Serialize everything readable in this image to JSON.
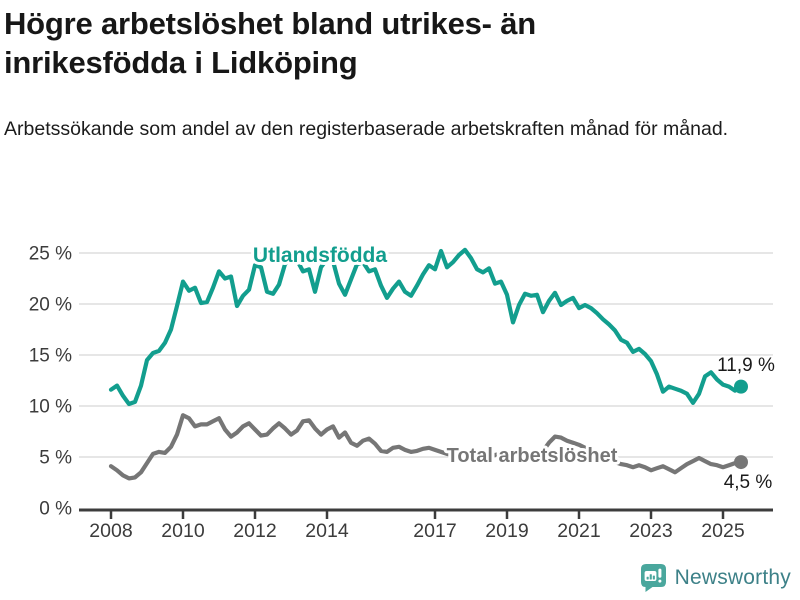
{
  "header": {
    "title": "Högre arbetslöshet bland utrikes- än inrikesfödda i Lidköping",
    "subtitle": "Arbetssökande som andel av den registerbaserade arbetskraften månad för månad."
  },
  "chart_data": {
    "type": "line",
    "unit": "%",
    "x_start": 2008.0,
    "x_step_years": 0.1666667,
    "x_end": 2025.5,
    "ylim": [
      0,
      25
    ],
    "grid": "horizontal",
    "y_ticks": [
      0,
      5,
      10,
      15,
      20,
      25
    ],
    "y_tick_labels": [
      "0 %",
      "5 %",
      "10 %",
      "15 %",
      "20 %",
      "25 %"
    ],
    "x_ticks": [
      2008,
      2010,
      2012,
      2014,
      2017,
      2019,
      2021,
      2023,
      2025
    ],
    "x_tick_labels": [
      "2008",
      "2010",
      "2012",
      "2014",
      "2017",
      "2019",
      "2021",
      "2023",
      "2025"
    ],
    "series": [
      {
        "name": "Utlandsfödda",
        "color": "#129e8e",
        "end_label": "11,9 %",
        "end_value": 11.9,
        "values": [
          11.6,
          12.0,
          11.0,
          10.2,
          10.4,
          12.0,
          14.5,
          15.2,
          15.4,
          16.2,
          17.5,
          19.8,
          22.2,
          21.3,
          21.6,
          20.1,
          20.2,
          21.6,
          23.2,
          22.5,
          22.7,
          19.8,
          20.8,
          21.4,
          23.8,
          23.6,
          21.2,
          21.0,
          21.9,
          23.9,
          24.4,
          24.3,
          23.2,
          23.4,
          21.2,
          23.6,
          24.4,
          24.2,
          22.0,
          20.9,
          22.4,
          23.9,
          24.1,
          23.2,
          23.4,
          21.8,
          20.6,
          21.5,
          22.2,
          21.2,
          20.8,
          21.8,
          22.9,
          23.8,
          23.4,
          25.2,
          23.6,
          24.1,
          24.8,
          25.3,
          24.5,
          23.4,
          23.1,
          23.5,
          22.0,
          22.2,
          20.9,
          18.2,
          19.9,
          21.0,
          20.8,
          20.9,
          19.2,
          20.3,
          21.1,
          19.9,
          20.3,
          20.6,
          19.6,
          19.9,
          19.6,
          19.1,
          18.5,
          18.0,
          17.4,
          16.5,
          16.2,
          15.3,
          15.6,
          15.1,
          14.4,
          13.1,
          11.4,
          11.9,
          11.7,
          11.5,
          11.2,
          10.3,
          11.2,
          12.9,
          13.3,
          12.6,
          12.1,
          11.9,
          11.5,
          11.9
        ]
      },
      {
        "name": "Total arbetslöshet",
        "color": "#767676",
        "end_label": "4,5 %",
        "end_value": 4.5,
        "values": [
          4.1,
          3.7,
          3.2,
          2.9,
          3.0,
          3.5,
          4.4,
          5.3,
          5.5,
          5.4,
          6.0,
          7.2,
          9.1,
          8.8,
          8.0,
          8.2,
          8.2,
          8.5,
          8.8,
          7.7,
          7.0,
          7.4,
          8.0,
          8.3,
          7.7,
          7.1,
          7.2,
          7.8,
          8.3,
          7.8,
          7.2,
          7.6,
          8.5,
          8.6,
          7.8,
          7.2,
          7.7,
          8.0,
          6.9,
          7.4,
          6.4,
          6.1,
          6.6,
          6.8,
          6.3,
          5.6,
          5.5,
          5.9,
          6.0,
          5.7,
          5.5,
          5.6,
          5.8,
          5.9,
          5.7,
          5.5,
          5.3,
          5.2,
          5.4,
          5.5,
          5.3,
          5.1,
          4.9,
          5.0,
          5.2,
          5.3,
          5.1,
          4.8,
          4.9,
          5.1,
          5.2,
          5.4,
          5.6,
          6.4,
          7.0,
          6.9,
          6.6,
          6.4,
          6.2,
          5.9,
          5.6,
          5.3,
          5.0,
          4.7,
          4.5,
          4.3,
          4.2,
          4.0,
          4.2,
          4.0,
          3.7,
          3.9,
          4.1,
          3.8,
          3.5,
          3.9,
          4.3,
          4.6,
          4.9,
          4.6,
          4.3,
          4.2,
          4.0,
          4.2,
          4.4,
          4.5
        ]
      }
    ],
    "colors": {
      "grid": "#d8d8d8",
      "axis": "#3c3c3c",
      "tick_text": "#3c3c3c",
      "value_label_text": "#1a1a1a"
    }
  },
  "footer": {
    "brand": "Newsworthy"
  }
}
